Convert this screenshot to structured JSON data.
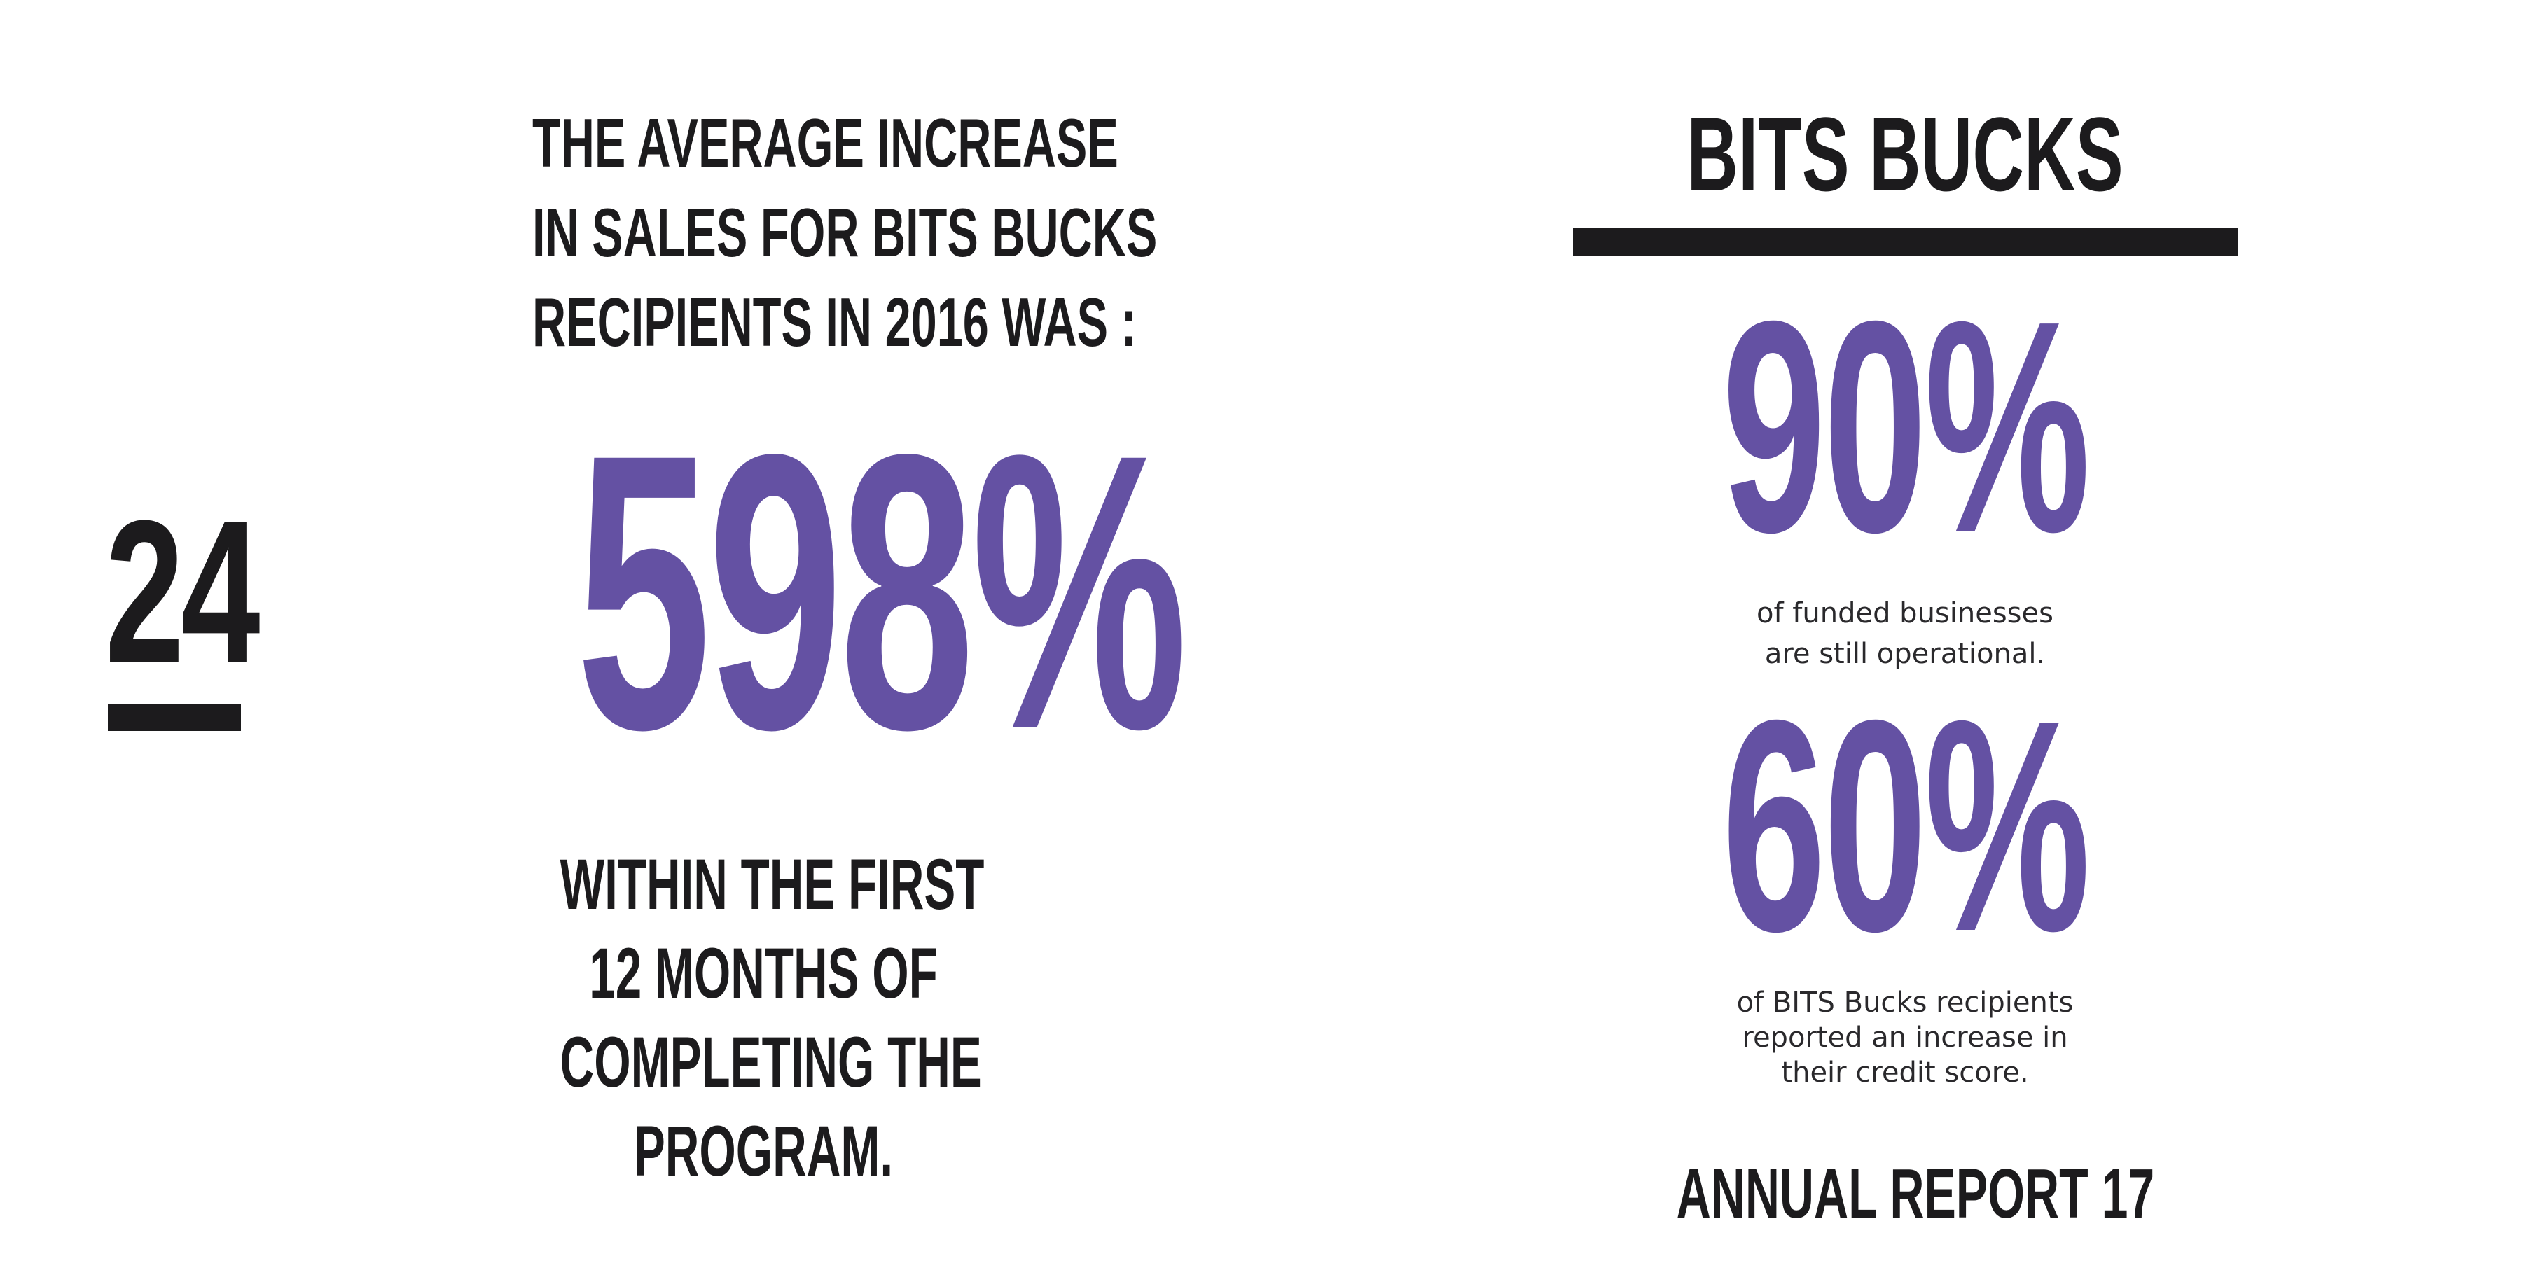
{
  "page": {
    "number": "24"
  },
  "left": {
    "heading_lines": [
      "THE AVERAGE INCREASE",
      "IN SALES FOR BITS BUCKS",
      "RECIPIENTS IN 2016 WAS :"
    ],
    "big_stat": "598%",
    "sub_lines": [
      "WITHIN THE FIRST",
      "12 MONTHS OF",
      "COMPLETING THE",
      "PROGRAM."
    ]
  },
  "right": {
    "title": "BITS BUCKS",
    "stat1": {
      "value": "90%",
      "caption_lines": [
        "of funded businesses",
        "are still operational."
      ]
    },
    "stat2": {
      "value": "60%",
      "caption_lines": [
        "of BITS Bucks recipients",
        "reported an increase in",
        "their credit score."
      ]
    },
    "footer": "ANNUAL REPORT 17"
  },
  "colors": {
    "accent": "#6451a3",
    "text": "#1c1b1d",
    "background": "#ffffff"
  }
}
